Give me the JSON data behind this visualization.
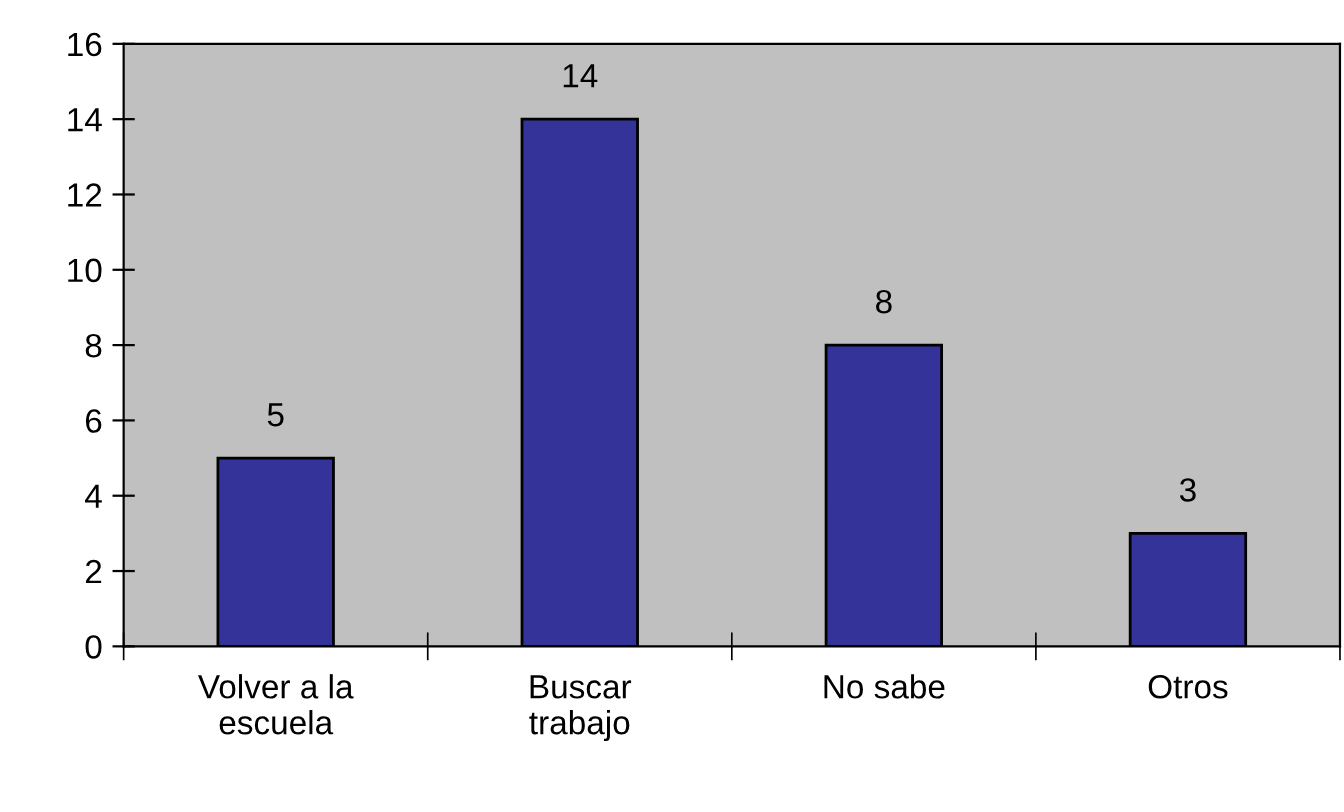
{
  "chart_data": {
    "type": "bar",
    "categories": [
      "Volver a la\nescuela",
      "Buscar\ntrabajo",
      "No sabe",
      "Otros"
    ],
    "values": [
      5,
      14,
      8,
      3
    ],
    "color": "#333399",
    "ylim": [
      0,
      16
    ],
    "yticks": [
      0,
      2,
      4,
      6,
      8,
      10,
      12,
      14,
      16
    ],
    "grid": false,
    "data_labels": true
  }
}
